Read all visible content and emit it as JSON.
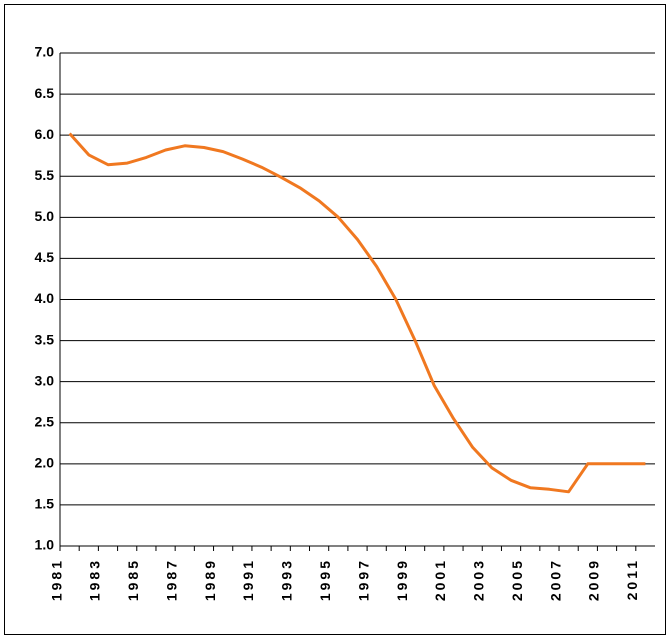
{
  "chart_data": {
    "type": "line",
    "categories": [
      "1981",
      null,
      "1983",
      null,
      "1985",
      null,
      "1987",
      null,
      "1989",
      null,
      "1991",
      null,
      "1993",
      null,
      "1995",
      null,
      "1997",
      null,
      "1999",
      null,
      "2001",
      null,
      "2003",
      null,
      "2005",
      null,
      "2007",
      null,
      "2009",
      null,
      "2011"
    ],
    "series": [
      {
        "color": "#f07820",
        "values": [
          6.02,
          5.76,
          5.64,
          5.66,
          5.73,
          5.82,
          5.87,
          5.85,
          5.8,
          5.71,
          5.61,
          5.49,
          5.36,
          5.2,
          5.0,
          4.73,
          4.4,
          4.0,
          3.5,
          2.95,
          2.55,
          2.2,
          1.95,
          1.8,
          1.71,
          1.69,
          1.66,
          2.0,
          2.0,
          2.0,
          2.0
        ]
      }
    ],
    "ylim": [
      1.0,
      7.0
    ],
    "yticks": [
      {
        "value": 1.0,
        "label": "1.0"
      },
      1.5,
      {
        "value": 2.0,
        "label": "2.0"
      },
      2.5,
      {
        "value": 3.0,
        "label": "3.0"
      },
      3.5,
      {
        "value": 4.0,
        "label": "4.0"
      },
      4.5,
      {
        "value": 5.0,
        "label": "5.0"
      },
      5.5,
      {
        "value": 6.0,
        "label": "6.0"
      },
      6.5,
      {
        "value": 7.0,
        "label": "7.0"
      }
    ],
    "grid": true
  }
}
